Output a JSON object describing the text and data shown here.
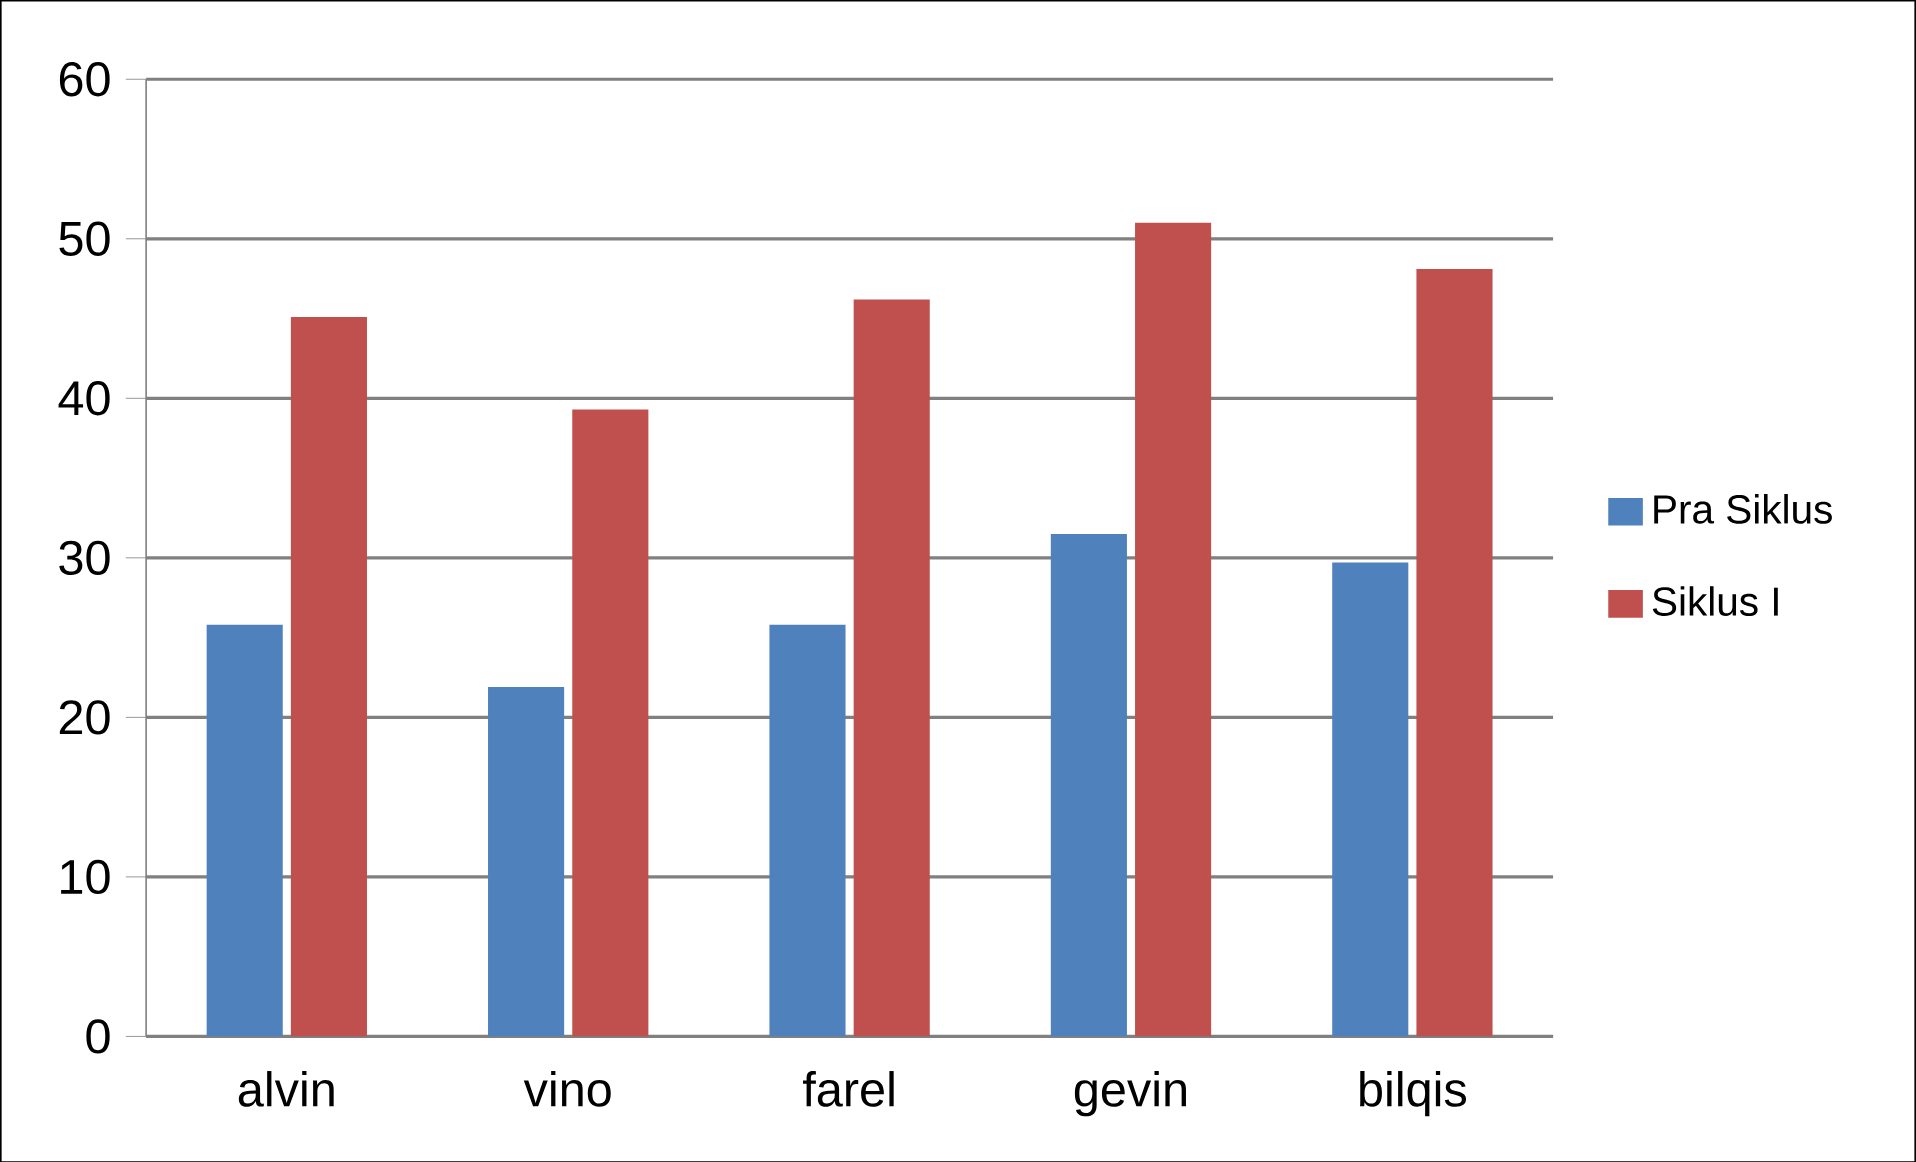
{
  "chart_data": {
    "type": "bar",
    "categories": [
      "alvin",
      "vino",
      "farel",
      "gevin",
      "bilqis"
    ],
    "series": [
      {
        "name": "Pra Siklus",
        "color": "#4f81bd",
        "values": [
          25.8,
          21.9,
          25.8,
          31.5,
          29.7
        ]
      },
      {
        "name": "Siklus I",
        "color": "#c0504d",
        "values": [
          45.1,
          39.3,
          46.2,
          51.0,
          48.1
        ]
      }
    ],
    "ylim": [
      0,
      60
    ],
    "yticks": [
      0,
      10,
      20,
      30,
      40,
      50,
      60
    ],
    "grid": "y",
    "legend": "right"
  }
}
